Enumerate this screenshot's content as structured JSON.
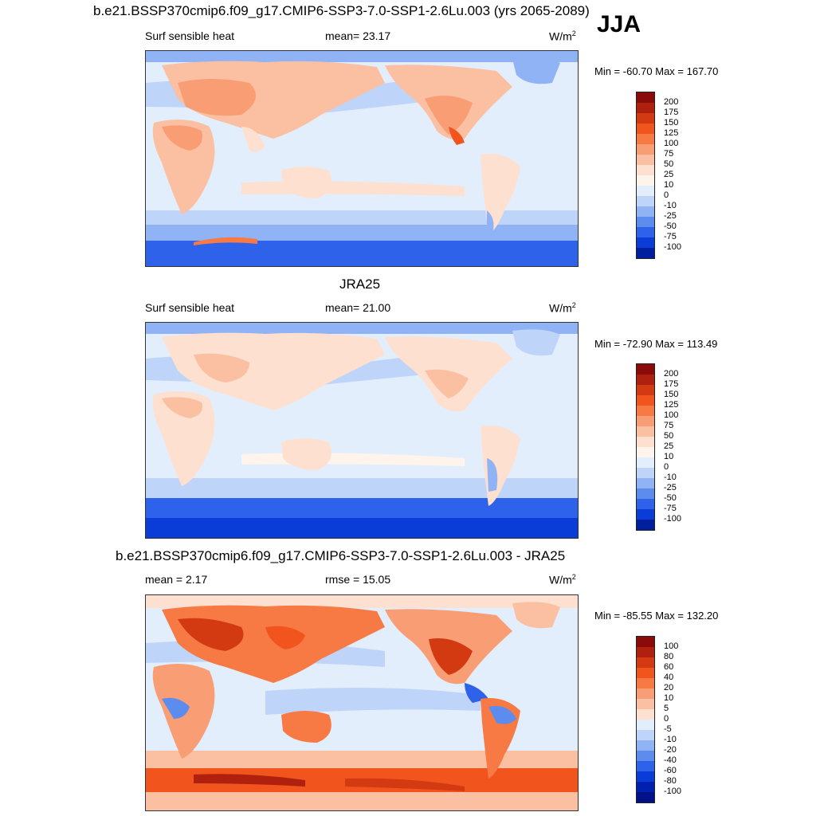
{
  "season": "JJA",
  "panels": [
    {
      "title": "b.e21.BSSP370cmip6.f09_g17.CMIP6-SSP3-7.0-SSP1-2.6Lu.003 (yrs 2065-2089)",
      "left_label": "Surf sensible heat",
      "center_label": "mean=  23.17",
      "units": "W/m",
      "units_sup": "2",
      "minmax": "Min = -60.70 Max = 167.70",
      "mean": 23.17,
      "min": -60.7,
      "max": 167.7
    },
    {
      "title": "JRA25",
      "left_label": "Surf sensible heat",
      "center_label": "mean=  21.00",
      "units": "W/m",
      "units_sup": "2",
      "minmax": "Min = -72.90 Max = 113.49",
      "mean": 21.0,
      "min": -72.9,
      "max": 113.49
    },
    {
      "title": "b.e21.BSSP370cmip6.f09_g17.CMIP6-SSP3-7.0-SSP1-2.6Lu.003 - JRA25",
      "left_label": "mean =   2.17",
      "center_label": "rmse =  15.05",
      "units": "W/m",
      "units_sup": "2",
      "minmax": "Min = -85.55 Max = 132.20",
      "mean": 2.17,
      "rmse": 15.05,
      "min": -85.55,
      "max": 132.2
    }
  ],
  "colorbars": {
    "field": {
      "labels": [
        "200",
        "175",
        "150",
        "125",
        "100",
        "75",
        "50",
        "25",
        "10",
        "0",
        "-10",
        "-25",
        "-50",
        "-75",
        "-100"
      ],
      "colors": [
        "#8b0a0a",
        "#b0200f",
        "#d33a12",
        "#f2541e",
        "#f77a45",
        "#f99d75",
        "#fbbfa2",
        "#fde0cf",
        "#fef4ec",
        "#e3eefc",
        "#bed4f8",
        "#8fb3f4",
        "#5d8cef",
        "#2e62eb",
        "#0a3cd8",
        "#001f9e"
      ]
    },
    "diff": {
      "labels": [
        "100",
        "80",
        "60",
        "40",
        "20",
        "10",
        "5",
        "0",
        "-5",
        "-10",
        "-20",
        "-40",
        "-60",
        "-80",
        "-100"
      ],
      "colors": [
        "#8b0a0a",
        "#b0200f",
        "#d33a12",
        "#f2541e",
        "#f77a45",
        "#f99d75",
        "#fbbfa2",
        "#fde0cf",
        "#e3eefc",
        "#bed4f8",
        "#8fb3f4",
        "#5d8cef",
        "#2e62eb",
        "#0a3cd8",
        "#0020b0",
        "#00118a"
      ]
    }
  }
}
